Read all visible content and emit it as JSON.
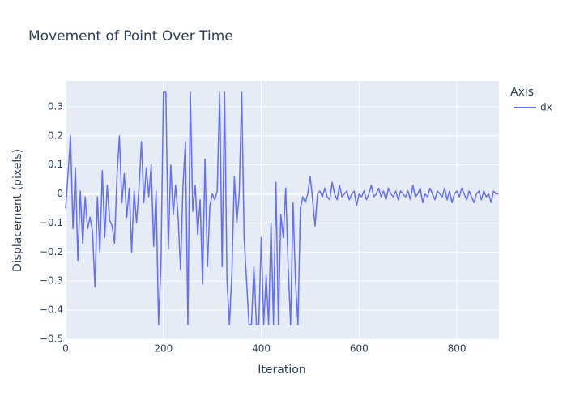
{
  "chart_data": {
    "type": "line",
    "title": "Movement of Point Over Time",
    "x_label": "Iteration",
    "y_label": "Displacement (pixels)",
    "legend_title": "Axis",
    "x": [
      0,
      5,
      10,
      15,
      20,
      25,
      30,
      35,
      40,
      45,
      50,
      55,
      60,
      65,
      70,
      75,
      80,
      85,
      90,
      95,
      100,
      105,
      110,
      115,
      120,
      125,
      130,
      135,
      140,
      145,
      150,
      155,
      160,
      165,
      170,
      175,
      180,
      185,
      190,
      195,
      200,
      205,
      210,
      215,
      220,
      225,
      230,
      235,
      240,
      245,
      250,
      255,
      260,
      265,
      270,
      275,
      280,
      285,
      290,
      295,
      300,
      305,
      310,
      315,
      320,
      325,
      330,
      335,
      340,
      345,
      350,
      355,
      360,
      365,
      370,
      375,
      380,
      385,
      390,
      395,
      400,
      405,
      410,
      415,
      420,
      425,
      430,
      435,
      440,
      445,
      450,
      455,
      460,
      465,
      470,
      475,
      480,
      485,
      490,
      495,
      500,
      505,
      510,
      515,
      520,
      525,
      530,
      535,
      540,
      545,
      550,
      555,
      560,
      565,
      570,
      575,
      580,
      585,
      590,
      595,
      600,
      605,
      610,
      615,
      620,
      625,
      630,
      635,
      640,
      645,
      650,
      655,
      660,
      665,
      670,
      675,
      680,
      685,
      690,
      695,
      700,
      705,
      710,
      715,
      720,
      725,
      730,
      735,
      740,
      745,
      750,
      755,
      760,
      765,
      770,
      775,
      780,
      785,
      790,
      795,
      800,
      805,
      810,
      815,
      820,
      825,
      830,
      835,
      840,
      845,
      850,
      855,
      860,
      865,
      870,
      875,
      880,
      885
    ],
    "series": [
      {
        "name": "dx",
        "color": "#636efa",
        "values": [
          -0.05,
          0.07,
          0.2,
          -0.12,
          0.09,
          -0.23,
          0.01,
          -0.17,
          -0.01,
          -0.12,
          -0.08,
          -0.13,
          -0.32,
          -0.01,
          -0.2,
          0.08,
          -0.15,
          0.03,
          -0.09,
          -0.11,
          -0.17,
          0.06,
          0.2,
          -0.03,
          0.07,
          -0.08,
          0.02,
          -0.2,
          0.01,
          -0.1,
          0.02,
          0.18,
          -0.03,
          0.09,
          -0.01,
          0.1,
          -0.18,
          0.01,
          -0.45,
          -0.24,
          0.35,
          0.35,
          -0.19,
          0.1,
          -0.07,
          0.03,
          -0.08,
          -0.26,
          0.03,
          0.18,
          -0.45,
          0.35,
          -0.06,
          0.03,
          -0.14,
          -0.02,
          -0.31,
          0.12,
          -0.25,
          -0.04,
          0.0,
          -0.02,
          0.01,
          0.35,
          -0.25,
          0.35,
          -0.3,
          -0.45,
          -0.27,
          0.06,
          -0.1,
          0.0,
          0.35,
          -0.15,
          -0.3,
          -0.45,
          -0.45,
          -0.25,
          -0.45,
          -0.45,
          -0.15,
          -0.45,
          -0.28,
          -0.45,
          -0.1,
          -0.45,
          0.04,
          -0.45,
          -0.07,
          -0.15,
          0.02,
          -0.25,
          -0.45,
          -0.03,
          -0.3,
          -0.45,
          -0.05,
          -0.01,
          -0.03,
          0.0,
          0.06,
          -0.02,
          -0.11,
          0.0,
          0.01,
          -0.01,
          0.02,
          -0.01,
          -0.02,
          0.04,
          0.0,
          -0.02,
          0.03,
          -0.01,
          0.0,
          0.01,
          -0.02,
          0.0,
          0.01,
          -0.04,
          0.0,
          -0.01,
          0.01,
          -0.02,
          0.0,
          0.03,
          -0.01,
          0.0,
          0.02,
          -0.01,
          0.01,
          -0.02,
          0.02,
          0.0,
          -0.01,
          0.01,
          -0.02,
          0.01,
          0.0,
          -0.01,
          0.01,
          -0.02,
          0.03,
          -0.01,
          0.0,
          0.02,
          -0.03,
          0.0,
          -0.01,
          0.02,
          0.0,
          -0.02,
          0.01,
          0.0,
          -0.01,
          0.02,
          -0.02,
          0.01,
          -0.03,
          0.0,
          0.01,
          -0.01,
          0.02,
          0.0,
          -0.02,
          0.01,
          -0.01,
          -0.03,
          0.0,
          0.01,
          -0.02,
          0.01,
          -0.01,
          0.0,
          -0.03,
          0.01,
          0.0,
          0.0
        ]
      }
    ],
    "xlim": [
      0,
      886
    ],
    "ylim": [
      -0.5,
      0.389
    ],
    "xticks": [
      0,
      200,
      400,
      600,
      800
    ],
    "yticks": [
      {
        "value": -0.5,
        "label": "−0.5"
      },
      {
        "value": -0.4,
        "label": "−0.4"
      },
      {
        "value": -0.3,
        "label": "−0.3"
      },
      {
        "value": -0.2,
        "label": "−0.2"
      },
      {
        "value": -0.1,
        "label": "−0.1"
      },
      0,
      0.1,
      0.2,
      0.3
    ],
    "grid": true,
    "legend": "right"
  }
}
